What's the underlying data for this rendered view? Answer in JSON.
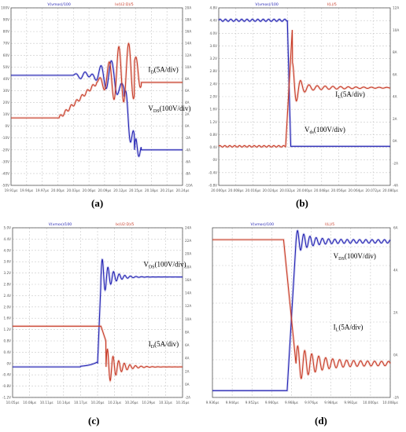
{
  "chart_data": [
    {
      "type": "line",
      "panel_label": "(a)",
      "header_left": "V(vmos)/100",
      "header_right": "Ix(U2:D)/5",
      "left_ticks": [
        "100V",
        "90V",
        "80V",
        "70V",
        "60V",
        "50V",
        "40V",
        "30V",
        "20V",
        "10V",
        "0V",
        "-10V",
        "-20V",
        "-30V",
        "-40V",
        "-50V"
      ],
      "right_ticks": [
        "20A",
        "18A",
        "16A",
        "14A",
        "12A",
        "10A",
        "8A",
        "6A",
        "4A",
        "2A",
        "0A",
        "-2A",
        "-4A",
        "-6A",
        "-8A",
        "-10A"
      ],
      "x_ticks": [
        "19.91μs",
        "19.94μs",
        "19.97μs",
        "20.00μs",
        "20.03μs",
        "20.06μs",
        "20.09μs",
        "20.12μs",
        "20.15μs",
        "20.18μs",
        "20.21μs",
        "20.24μs"
      ],
      "xlim": [
        0,
        1
      ],
      "ylim": [
        0,
        1
      ],
      "annotations": [
        {
          "main": "I",
          "sub": "D",
          "rest": "(5A/div)",
          "x": 0.8,
          "y": 0.64
        },
        {
          "main": "V",
          "sub": "DS",
          "rest": "(100V/div)",
          "x": 0.8,
          "y": 0.42
        }
      ],
      "series": [
        {
          "name": "V(vmos)/100",
          "color": "#2323b4",
          "kind": "vds_falling_a"
        },
        {
          "name": "Ix(U2:D)/5",
          "color": "#c83c28",
          "kind": "id_rising_a"
        }
      ]
    },
    {
      "type": "line",
      "panel_label": "(b)",
      "header_left": "V(vmos)/100",
      "header_right": "I(L)/5",
      "left_ticks": [
        "4.8V",
        "4.4V",
        "4.0V",
        "3.6V",
        "3.2V",
        "2.8V",
        "2.4V",
        "2.0V",
        "1.6V",
        "1.2V",
        "0.8V",
        "0.4V",
        "0V",
        "-0.4V",
        "-0.8V"
      ],
      "right_ticks": [
        "12A",
        "10A",
        "8A",
        "6A",
        "4A",
        "2A",
        "0A",
        "-2A",
        "-4A"
      ],
      "x_ticks": [
        "20.000μs",
        "20.008μs",
        "20.016μs",
        "20.024μs",
        "20.032μs",
        "20.040μs",
        "20.048μs",
        "20.056μs",
        "20.064μs",
        "20.072μs",
        "20.080μs"
      ],
      "xlim": [
        0,
        1
      ],
      "ylim": [
        0,
        1
      ],
      "annotations": [
        {
          "main": "I",
          "sub": "L",
          "rest": "(5A/div)",
          "x": 0.68,
          "y": 0.5
        },
        {
          "main": "V",
          "sub": "ds",
          "rest": "(100V/div)",
          "x": 0.5,
          "y": 0.3
        }
      ],
      "series": [
        {
          "name": "V(vmos)/100",
          "color": "#2323b4",
          "kind": "vds_falling_b"
        },
        {
          "name": "I(L)/5",
          "color": "#c83c28",
          "kind": "id_rising_b"
        }
      ]
    },
    {
      "type": "line",
      "panel_label": "(c)",
      "header_left": "V(vmos)/100",
      "header_right": "Ix(U2:D)/5",
      "left_ticks": [
        "5.0V",
        "4.4V",
        "4.0V",
        "3.6V",
        "3.2V",
        "2.8V",
        "2.4V",
        "2.0V",
        "1.6V",
        "1.2V",
        "0.8V",
        "0.4V",
        "0V",
        "-0.4V",
        "-0.8V",
        "-1.2V"
      ],
      "right_ticks": [
        "24A",
        "22A",
        "20A",
        "18A",
        "16A",
        "14A",
        "12A",
        "10A",
        "8A",
        "6A",
        "4A",
        "2A",
        "0A",
        "-2A"
      ],
      "x_ticks": [
        "10.05μs",
        "10.08μs",
        "10.11μs",
        "10.14μs",
        "10.17μs",
        "10.20μs",
        "10.23μs",
        "10.26μs",
        "10.29μs",
        "10.32μs",
        "10.35μs"
      ],
      "xlim": [
        0,
        1
      ],
      "ylim": [
        0,
        1
      ],
      "annotations": [
        {
          "main": "V",
          "sub": "DS",
          "rest": "(100V/div)",
          "x": 0.77,
          "y": 0.77
        },
        {
          "main": "I",
          "sub": "D",
          "rest": "(5A/div)",
          "x": 0.8,
          "y": 0.3
        }
      ],
      "series": [
        {
          "name": "V(vmos)/100",
          "color": "#2323b4",
          "kind": "vds_rising_c"
        },
        {
          "name": "Ix(U2:D)/5",
          "color": "#c83c28",
          "kind": "id_falling_c"
        }
      ]
    },
    {
      "type": "line",
      "panel_label": "(d)",
      "header_left": "V(vmos)/100",
      "header_right": "I(L)/5",
      "left_ticks": [],
      "right_ticks": [
        "6A",
        "4A",
        "2A",
        "0A",
        "-2A"
      ],
      "x_ticks": [
        "9.936μs",
        "9.944μs",
        "9.952μs",
        "9.960μs",
        "9.968μs",
        "9.976μs",
        "9.984μs",
        "9.992μs",
        "10.000μs",
        "10.008μs"
      ],
      "xlim": [
        0,
        1
      ],
      "ylim": [
        0,
        1
      ],
      "annotations": [
        {
          "main": "V",
          "sub": "DS",
          "rest": "(100V/div)",
          "x": 0.68,
          "y": 0.82
        },
        {
          "main": "I",
          "sub": "L",
          "rest": "(5A/div)",
          "x": 0.68,
          "y": 0.4
        }
      ],
      "series": [
        {
          "name": "V(vmos)/100",
          "color": "#2323b4",
          "kind": "vds_rising_d"
        },
        {
          "name": "I(L)/5",
          "color": "#c83c28",
          "kind": "id_falling_d"
        }
      ]
    }
  ]
}
